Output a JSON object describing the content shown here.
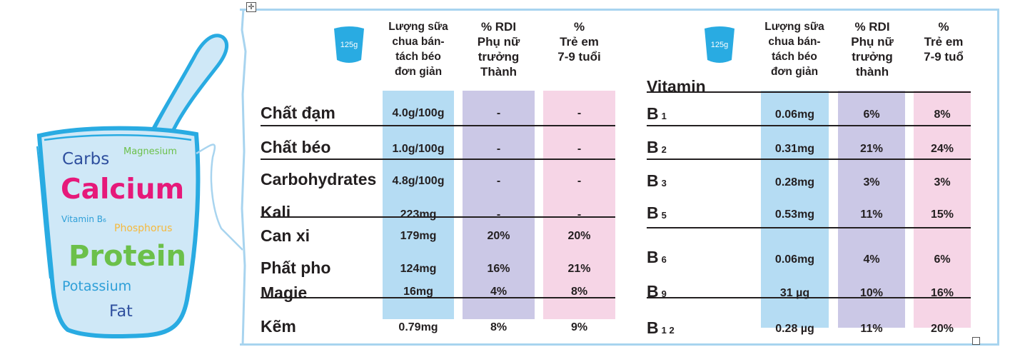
{
  "illustration": {
    "words": [
      {
        "text": "Carbs",
        "color": "#2e4f9e"
      },
      {
        "text": "Magnesium",
        "color": "#6cc04a"
      },
      {
        "text": "Calcium",
        "color": "#e6197a"
      },
      {
        "text": "Vitamin B₆",
        "color": "#2e9fd8"
      },
      {
        "text": "Phosphorus",
        "color": "#f6b93c"
      },
      {
        "text": "Protein",
        "color": "#6cc04a"
      },
      {
        "text": "Potassium",
        "color": "#2e9fd8"
      },
      {
        "text": "Fat",
        "color": "#2e4f9e"
      }
    ]
  },
  "colors": {
    "blue": "#b5dcf3",
    "purple": "#cbc8e6",
    "pink": "#f6d5e6",
    "frame": "#a8d4ef",
    "badge": "#29abe2"
  },
  "left_table": {
    "badge": "125g",
    "headers": [
      "Lượng sữa\nchua bán-\ntách béo\nđơn giản",
      "% RDI\nPhụ nữ\ntrưởng\nThành",
      "%\nTrẻ em\n7-9 tuổi"
    ],
    "rows": [
      {
        "label": "Chất đạm",
        "v": [
          "4.0g/100g",
          "-",
          "-"
        ]
      },
      {
        "label": "Chất béo",
        "v": [
          "1.0g/100g",
          "-",
          "-"
        ]
      },
      {
        "label": "Carbohydrates",
        "v": [
          "4.8g/100g",
          "-",
          "-"
        ]
      },
      {
        "label": "Kali",
        "v": [
          "223mg",
          "-",
          "-"
        ]
      },
      {
        "label": "Can xi",
        "v": [
          "179mg",
          "20%",
          "20%"
        ]
      },
      {
        "label": "Phất pho",
        "v": [
          "124mg",
          "16%",
          "21%"
        ]
      },
      {
        "label": "Magie",
        "v": [
          "16mg",
          "4%",
          "8%"
        ]
      },
      {
        "label": "Kẽm",
        "v": [
          "0.79mg",
          "8%",
          "9%"
        ]
      }
    ]
  },
  "right_table": {
    "badge": "125g",
    "title": "Vitamin",
    "headers": [
      "Lượng sữa\nchua bán-\ntách béo\nđơn giản",
      "% RDI\nPhụ nữ\ntrưởng\nthành",
      "%\nTrẻ em\n7-9 tuổ"
    ],
    "rows": [
      {
        "label": "B",
        "sub": "1",
        "v": [
          "0.06mg",
          "6%",
          "8%"
        ]
      },
      {
        "label": "B",
        "sub": "2",
        "v": [
          "0.31mg",
          "21%",
          "24%"
        ]
      },
      {
        "label": "B",
        "sub": "3",
        "v": [
          "0.28mg",
          "3%",
          "3%"
        ]
      },
      {
        "label": "B",
        "sub": "5",
        "v": [
          "0.53mg",
          "11%",
          "15%"
        ]
      },
      {
        "label": "B",
        "sub": "6",
        "v": [
          "0.06mg",
          "4%",
          "6%"
        ]
      },
      {
        "label": "B",
        "sub": "9",
        "v": [
          "31 µg",
          "10%",
          "16%"
        ]
      },
      {
        "label": "B",
        "sub": "1 2",
        "v": [
          "0.28 µg",
          "11%",
          "20%"
        ]
      }
    ]
  }
}
